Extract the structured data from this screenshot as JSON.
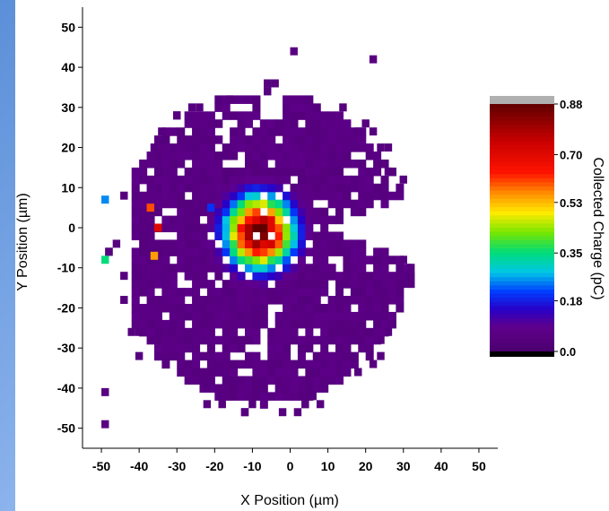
{
  "chart_data": {
    "type": "heatmap",
    "title": "",
    "xlabel": "X Position (µm)",
    "ylabel": "Y Position (µm)",
    "xlim": [
      -55,
      55
    ],
    "ylim": [
      -55,
      55
    ],
    "xticks": [
      -50,
      -40,
      -30,
      -20,
      -10,
      0,
      10,
      20,
      30,
      40,
      50
    ],
    "yticks": [
      50,
      40,
      30,
      20,
      10,
      0,
      -10,
      -20,
      -30,
      -40,
      -50
    ],
    "grid": false,
    "pixel_pitch_um": 2,
    "colorbar": {
      "label": "Collected Charge (pC)",
      "min": 0.0,
      "max": 0.88,
      "tick_labels": [
        "0.88",
        "0.70",
        "0.53",
        "0.35",
        "0.18",
        "0.0"
      ],
      "tick_values": [
        0.88,
        0.7,
        0.53,
        0.35,
        0.18,
        0.0
      ],
      "saturation_color": "#b0b0b0",
      "underflow_color": "#000000"
    },
    "hotspot": {
      "center_x_um": -8,
      "center_y_um": -1,
      "peak_charge_pc": 0.88,
      "core_radius_um": 5,
      "halo_radius_um": 16
    },
    "background_charge_pc": 0.06,
    "isolated_points": [
      {
        "x": -49,
        "y": 7,
        "value": 0.25
      },
      {
        "x": -49,
        "y": -8,
        "value": 0.35
      },
      {
        "x": -21,
        "y": 5,
        "value": 0.2
      },
      {
        "x": -37,
        "y": 5,
        "value": 0.6
      },
      {
        "x": -36,
        "y": -7,
        "value": 0.55
      },
      {
        "x": -35,
        "y": 0,
        "value": 0.7
      },
      {
        "x": -49,
        "y": -49,
        "value": 0.06
      },
      {
        "x": -49,
        "y": -41,
        "value": 0.06
      },
      {
        "x": 1,
        "y": 44,
        "value": 0.06
      },
      {
        "x": 22,
        "y": 42,
        "value": 0.06
      }
    ],
    "colors": {
      "plot_background": "#ffffff",
      "frame_background": "#5b8fd8"
    }
  }
}
